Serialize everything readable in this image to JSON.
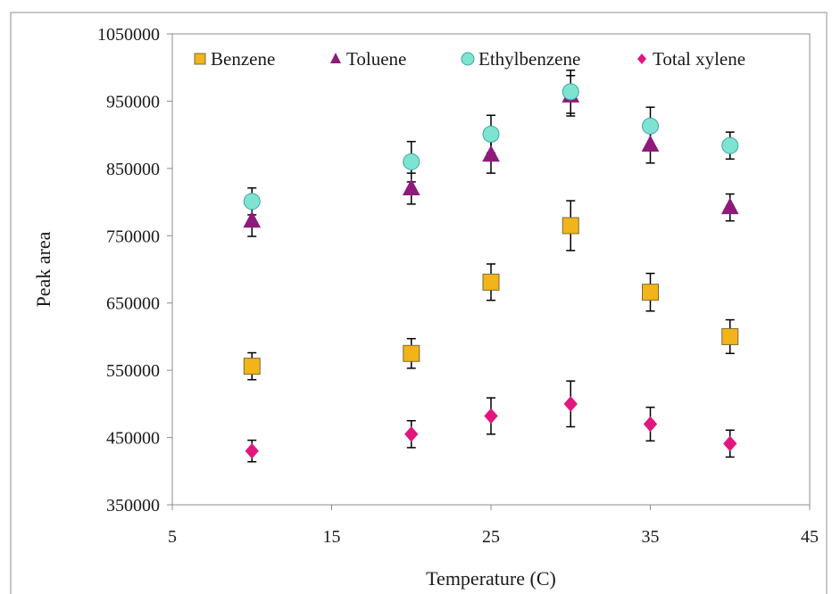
{
  "chart_data": {
    "type": "scatter",
    "title": "",
    "xlabel": "Temperature (C)",
    "ylabel": "Peak area",
    "xlim": [
      5,
      45
    ],
    "ylim": [
      350000,
      1050000
    ],
    "xticks": [
      "5",
      "15",
      "25",
      "35",
      "45"
    ],
    "yticks": [
      "350000",
      "450000",
      "550000",
      "650000",
      "750000",
      "850000",
      "950000",
      "1050000"
    ],
    "grid": false,
    "legend_position": "top",
    "series": [
      {
        "name": "Benzene",
        "marker": "square",
        "color": "#F2B418",
        "x": [
          10,
          20,
          25,
          30,
          35,
          40
        ],
        "y": [
          556000,
          575000,
          681000,
          765000,
          666000,
          600000
        ],
        "err": [
          20000,
          22000,
          27000,
          37000,
          28000,
          25000
        ]
      },
      {
        "name": "Toluene",
        "marker": "triangle",
        "color": "#8E1A7C",
        "x": [
          10,
          20,
          25,
          30,
          35,
          40
        ],
        "y": [
          772000,
          820000,
          870000,
          958000,
          885000,
          792000
        ],
        "err": [
          23000,
          23000,
          27000,
          30000,
          27000,
          20000
        ]
      },
      {
        "name": "Ethylbenzene",
        "marker": "circle",
        "color": "#7FE3D2",
        "x": [
          10,
          20,
          25,
          30,
          35,
          40
        ],
        "y": [
          801000,
          860000,
          901000,
          964000,
          913000,
          884000
        ],
        "err": [
          20000,
          30000,
          28000,
          32000,
          28000,
          20000
        ]
      },
      {
        "name": "Total xylene",
        "marker": "diamond",
        "color": "#E2177E",
        "x": [
          10,
          20,
          25,
          30,
          35,
          40
        ],
        "y": [
          430000,
          455000,
          482000,
          500000,
          470000,
          441000
        ],
        "err": [
          16000,
          20000,
          27000,
          34000,
          25000,
          20000
        ]
      }
    ]
  }
}
